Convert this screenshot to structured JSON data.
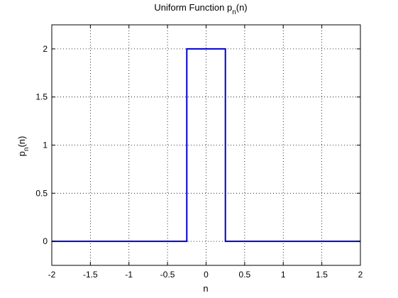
{
  "chart_data": {
    "type": "line",
    "title": {
      "main": "Uniform Function p",
      "sub": "n",
      "tail": "(n)"
    },
    "xlabel": "n",
    "ylabel": {
      "main": "p",
      "sub": "n",
      "tail": "(n)"
    },
    "xlim": [
      -2,
      2
    ],
    "ylim": [
      -0.25,
      2.25
    ],
    "xticks": [
      -2,
      -1.5,
      -1,
      -0.5,
      0,
      0.5,
      1,
      1.5,
      2
    ],
    "xtick_labels": [
      "-2",
      "-1.5",
      "-1",
      "-0.5",
      "0",
      "0.5",
      "1",
      "1.5",
      "2"
    ],
    "yticks": [
      0,
      0.5,
      1,
      1.5,
      2
    ],
    "ytick_labels": [
      "0",
      "0.5",
      "1",
      "1.5",
      "2"
    ],
    "grid": true,
    "grid_style": "dotted",
    "series": [
      {
        "color": "#0000cc",
        "x": [
          -2,
          -0.25,
          -0.25,
          0.25,
          0.25,
          0.25,
          2
        ],
        "y": [
          0,
          0,
          2,
          2,
          1,
          0,
          0
        ]
      }
    ]
  }
}
